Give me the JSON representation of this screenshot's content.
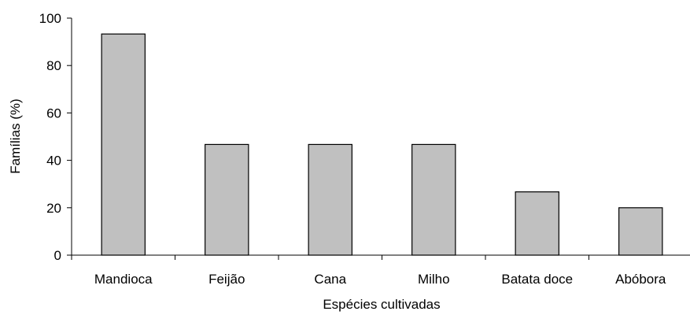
{
  "chart_data": {
    "type": "bar",
    "title": "",
    "xlabel": "Espécies cultivadas",
    "ylabel": "Famílias (%)",
    "categories": [
      "Mandioca",
      "Feijão",
      "Cana",
      "Milho",
      "Batata doce",
      "Abóbora"
    ],
    "values": [
      93.3,
      46.7,
      46.7,
      46.7,
      26.7,
      20.0
    ],
    "ylim": [
      0,
      100
    ],
    "yticks": [
      "0",
      "20",
      "40",
      "60",
      "80",
      "100"
    ],
    "grid": false,
    "legend": "none",
    "colors": {
      "bar_fill": "#c0c0c0",
      "bar_stroke": "#000000",
      "axis": "#000000"
    }
  }
}
